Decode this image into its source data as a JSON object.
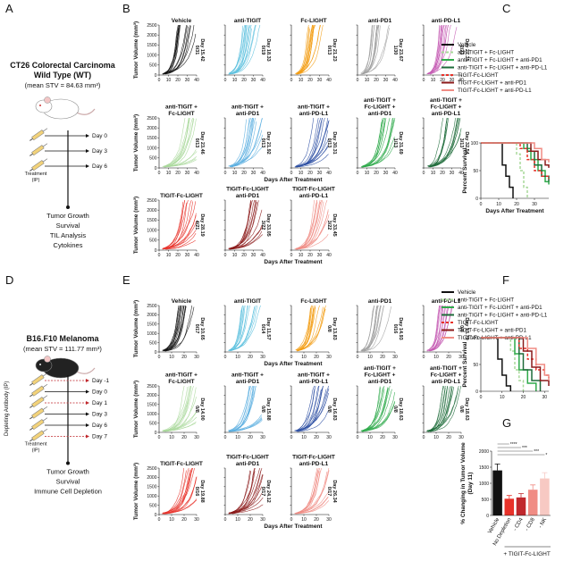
{
  "panel_a": {
    "label": "A",
    "title": [
      "CT26 Colorectal Carcinoma",
      "Wild Type (WT)"
    ],
    "subtitle": "(mean STV = 84.63 mm³)",
    "days": [
      {
        "label": "Day 0",
        "color": "#111111"
      },
      {
        "label": "Day 3",
        "color": "#111111"
      },
      {
        "label": "Day 6",
        "color": "#111111"
      }
    ],
    "treatment": [
      "Treatment",
      "(IP)"
    ],
    "outcomes": [
      "Tumor Growth",
      "Survival",
      "TIL Analysis",
      "Cytokines"
    ],
    "mouse_color": "#ffffff"
  },
  "panel_d": {
    "label": "D",
    "title": [
      "B16.F10 Melanoma"
    ],
    "subtitle": "(mean STV = 111.77 mm³)",
    "days": [
      {
        "label": "Day -1",
        "color": "#c0282d"
      },
      {
        "label": "Day 0",
        "color": "#111111"
      },
      {
        "label": "Day 1",
        "color": "#c0282d"
      },
      {
        "label": "Day 3",
        "color": "#111111"
      },
      {
        "label": "Day 6",
        "color": "#111111"
      },
      {
        "label": "Day 7",
        "color": "#c0282d"
      }
    ],
    "depletion": "Depleting Antibody (IP)",
    "treatment": [
      "Treatment",
      "(IP)"
    ],
    "outcomes": [
      "Tumor Growth",
      "Survival",
      "Immune Cell Depletion"
    ],
    "mouse_color": "#222222"
  },
  "chart_data": [
    {
      "type": "spaghetti",
      "label": "B",
      "ylabel": "Tumor Volume (mm³)",
      "xlabel": "Days After Treatment",
      "xlim": [
        0,
        40
      ],
      "xticks": [
        0,
        10,
        20,
        30,
        40
      ],
      "ylim": [
        0,
        2500
      ],
      "yticks": [
        0,
        500,
        1000,
        1500,
        2000,
        2500
      ],
      "plots": [
        {
          "title": [
            "Vehicle"
          ],
          "color": "#111111",
          "median": "Day 15.42",
          "fraction": "0/31"
        },
        {
          "title": [
            "anti-TIGIT"
          ],
          "color": "#5bc0de",
          "median": "Day 18.33",
          "fraction": "0/19"
        },
        {
          "title": [
            "Fc-LIGHT"
          ],
          "color": "#f39c12",
          "median": "Day 21.23",
          "fraction": "0/13"
        },
        {
          "title": [
            "anti-PD1"
          ],
          "color": "#a0a0a0",
          "median": "Day 23.67",
          "fraction": "1/30"
        },
        {
          "title": [
            "anti-PD-L1"
          ],
          "color": "#c45ab3",
          "median": "Day 27.35",
          "fraction": "2/23"
        },
        {
          "title": [
            "anti-TIGIT +",
            "Fc-LIGHT"
          ],
          "color": "#a8d89a",
          "median": "Day 23.46",
          "fraction": "0/13"
        },
        {
          "title": [
            "anti-TIGIT +",
            "anti-PD1"
          ],
          "color": "#5aaee0",
          "median": "Day 21.92",
          "fraction": "0/13"
        },
        {
          "title": [
            "anti-TIGIT +",
            "anti-PD-L1"
          ],
          "color": "#2c4fa3",
          "median": "Day 30.31",
          "fraction": "0/13"
        },
        {
          "title": [
            "anti-TIGIT +",
            "Fc-LIGHT +",
            "anti-PD1"
          ],
          "color": "#2eaa4a",
          "median": "Day 31.69",
          "fraction": "1/13"
        },
        {
          "title": [
            "anti-TIGIT +",
            "Fc-LIGHT +",
            "anti-PD-L1"
          ],
          "color": "#1e6b3a",
          "median": "Day 32.54",
          "fraction": "3/13"
        },
        {
          "title": [
            "TIGIT-Fc-LIGHT"
          ],
          "color": "#e8322a",
          "median": "Day 28.19",
          "fraction": "4/21"
        },
        {
          "title": [
            "TIGIT-Fc-LIGHT",
            "anti-PD1"
          ],
          "color": "#8b1a1a",
          "median": "Day 33.05",
          "fraction": "3/22"
        },
        {
          "title": [
            "TIGIT-Fc-LIGHT",
            "anti-PD-L1"
          ],
          "color": "#f08c84",
          "median": "Day 33.45",
          "fraction": "3/22"
        }
      ]
    },
    {
      "type": "survival",
      "label": "C",
      "ylabel": "Percent Survival",
      "xlabel": "Days After Treatment",
      "xlim": [
        0,
        38
      ],
      "xticks": [
        0,
        10,
        20,
        30
      ],
      "ylim": [
        0,
        100
      ],
      "yticks": [
        0,
        50,
        100
      ],
      "series": [
        {
          "name": "Vehicle",
          "color": "#111111",
          "dashed": false,
          "x": [
            0,
            12,
            14,
            16,
            18
          ],
          "values": [
            100,
            60,
            40,
            20,
            0
          ]
        },
        {
          "name": "anti-TIGIT + Fc-LIGHT",
          "color": "#a8d89a",
          "dashed": true,
          "x": [
            0,
            20,
            22,
            24,
            26
          ],
          "values": [
            100,
            80,
            50,
            20,
            0
          ]
        },
        {
          "name": "anti-TIGIT + Fc-LIGHT + anti-PD1",
          "color": "#2eaa4a",
          "dashed": false,
          "x": [
            0,
            24,
            28,
            32,
            36,
            38
          ],
          "values": [
            100,
            90,
            70,
            50,
            30,
            25
          ]
        },
        {
          "name": "anti-TIGIT + Fc-LIGHT + anti-PD-L1",
          "color": "#1e6b3a",
          "dashed": false,
          "x": [
            0,
            26,
            30,
            34,
            38
          ],
          "values": [
            100,
            85,
            60,
            40,
            30
          ]
        },
        {
          "name": "TIGIT-Fc-LIGHT",
          "color": "#e8322a",
          "dashed": true,
          "x": [
            0,
            22,
            26,
            30,
            34,
            38
          ],
          "values": [
            100,
            90,
            70,
            50,
            40,
            35
          ]
        },
        {
          "name": "TIGIT-Fc-LIGHT + anti-PD1",
          "color": "#8b1a1a",
          "dashed": false,
          "x": [
            0,
            28,
            32,
            36,
            38
          ],
          "values": [
            100,
            85,
            70,
            60,
            55
          ]
        },
        {
          "name": "TIGIT-Fc-LIGHT + anti-PD-L1",
          "color": "#f08c84",
          "dashed": false,
          "x": [
            0,
            30,
            34,
            38
          ],
          "values": [
            100,
            90,
            70,
            65
          ]
        }
      ]
    },
    {
      "type": "spaghetti",
      "label": "E",
      "ylabel": "Tumor Volume (mm³)",
      "xlabel": "Days After Treatment",
      "xlim": [
        0,
        30
      ],
      "xticks": [
        0,
        10,
        20,
        30
      ],
      "ylim": [
        0,
        2500
      ],
      "yticks": [
        0,
        500,
        1000,
        1500,
        2000,
        2500
      ],
      "plots": [
        {
          "title": [
            "Vehicle"
          ],
          "color": "#111111",
          "median": "Day 10.65",
          "fraction": "0/17"
        },
        {
          "title": [
            "anti-TIGIT"
          ],
          "color": "#5bc0de",
          "median": "Day 11.57",
          "fraction": "0/14"
        },
        {
          "title": [
            "Fc-LIGHT"
          ],
          "color": "#f39c12",
          "median": "Day 13.83",
          "fraction": "0/8"
        },
        {
          "title": [
            "anti-PD1"
          ],
          "color": "#a0a0a0",
          "median": "Day 14.93",
          "fraction": "0/16"
        },
        {
          "title": [
            "anti-PD-L1"
          ],
          "color": "#c45ab3",
          "median": "Day 13.79",
          "fraction": "0/8"
        },
        {
          "title": [
            "anti-TIGIT +",
            "Fc-LIGHT"
          ],
          "color": "#a8d89a",
          "median": "Day 14.00",
          "fraction": "0/8"
        },
        {
          "title": [
            "anti-TIGIT +",
            "anti-PD1"
          ],
          "color": "#5aaee0",
          "median": "Day 15.88",
          "fraction": "0/8"
        },
        {
          "title": [
            "anti-TIGIT +",
            "anti-PD-L1"
          ],
          "color": "#2c4fa3",
          "median": "Day 16.83",
          "fraction": "0/8"
        },
        {
          "title": [
            "anti-TIGIT +",
            "Fc-LIGHT +",
            "anti-PD1"
          ],
          "color": "#2eaa4a",
          "median": "Day 18.63",
          "fraction": "0/8"
        },
        {
          "title": [
            "anti-TIGIT +",
            "Fc-LIGHT +",
            "anti-PD-L1"
          ],
          "color": "#1e6b3a",
          "median": "Day 18.63",
          "fraction": "0/8"
        },
        {
          "title": [
            "TIGIT-Fc-LIGHT"
          ],
          "color": "#e8322a",
          "median": "Day 19.88",
          "fraction": "0/16"
        },
        {
          "title": [
            "TIGIT-Fc-LIGHT",
            "anti-PD1"
          ],
          "color": "#8b1a1a",
          "median": "Day 24.12",
          "fraction": "0/17"
        },
        {
          "title": [
            "TIGIT-Fc-LIGHT",
            "anti-PD-L1"
          ],
          "color": "#f08c84",
          "median": "Day 26.34",
          "fraction": "0/17"
        }
      ]
    },
    {
      "type": "survival",
      "label": "F",
      "ylabel": "Percent Survival",
      "xlim": [
        0,
        32
      ],
      "xticks": [
        0,
        10,
        20,
        30
      ],
      "ylim": [
        0,
        100
      ],
      "yticks": [
        0,
        50,
        100
      ],
      "series": [
        {
          "name": "Vehicle",
          "color": "#111111",
          "dashed": false,
          "x": [
            0,
            8,
            10,
            12,
            14
          ],
          "values": [
            100,
            60,
            30,
            10,
            0
          ]
        },
        {
          "name": "anti-TIGIT + Fc-LIGHT",
          "color": "#a8d89a",
          "dashed": true,
          "x": [
            0,
            14,
            16,
            18,
            20
          ],
          "values": [
            100,
            75,
            40,
            20,
            0
          ]
        },
        {
          "name": "anti-TIGIT + Fc-LIGHT + anti-PD1",
          "color": "#2eaa4a",
          "dashed": false,
          "x": [
            0,
            16,
            18,
            22,
            26
          ],
          "values": [
            100,
            70,
            40,
            15,
            0
          ]
        },
        {
          "name": "anti-TIGIT + Fc-LIGHT + anti-PD-L1",
          "color": "#1e6b3a",
          "dashed": false,
          "x": [
            0,
            18,
            20,
            24,
            28
          ],
          "values": [
            100,
            70,
            40,
            20,
            0
          ]
        },
        {
          "name": "TIGIT-Fc-LIGHT",
          "color": "#e8322a",
          "dashed": true,
          "x": [
            0,
            18,
            22,
            26,
            30,
            32
          ],
          "values": [
            100,
            80,
            60,
            40,
            30,
            25
          ]
        },
        {
          "name": "TIGIT-Fc-LIGHT + anti-PD1",
          "color": "#8b1a1a",
          "dashed": false,
          "x": [
            0,
            20,
            24,
            28,
            32
          ],
          "values": [
            100,
            75,
            45,
            20,
            10
          ]
        },
        {
          "name": "TIGIT-Fc-LIGHT + anti-PD-L1",
          "color": "#f08c84",
          "dashed": false,
          "x": [
            0,
            22,
            26,
            30,
            32
          ],
          "values": [
            100,
            80,
            50,
            30,
            20
          ]
        }
      ]
    },
    {
      "type": "bar",
      "label": "G",
      "ylabel": [
        "% Changing in Tumor Volume",
        "(Day 11)"
      ],
      "categories": [
        "Vehicle",
        "No Depletion",
        "- CD4",
        "- CD8",
        "- NK"
      ],
      "values": [
        1400,
        520,
        560,
        800,
        1150
      ],
      "errors": [
        200,
        100,
        120,
        150,
        180
      ],
      "colors": [
        "#111111",
        "#e8322a",
        "#c0282d",
        "#f08c84",
        "#f7c9c3"
      ],
      "ylim": [
        0,
        2000
      ],
      "yticks": [
        0,
        500,
        1000,
        1500,
        2000
      ],
      "group_label": "+ TIGIT-Fc-LIGHT",
      "significance": [
        "****",
        "***",
        "***",
        "*"
      ]
    }
  ]
}
